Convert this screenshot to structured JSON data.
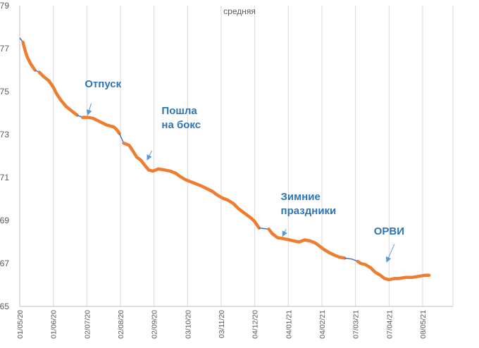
{
  "chart_data": {
    "type": "line",
    "title": "средняя",
    "xlabel": "",
    "ylabel": "",
    "ylim": [
      65,
      79
    ],
    "yticks": [
      65,
      67,
      69,
      71,
      73,
      75,
      77,
      79
    ],
    "grid": "vertical",
    "x_range": [
      0,
      400
    ],
    "xtick_labels": [
      {
        "label": "01/05/20",
        "day": 0
      },
      {
        "label": "01/06/20",
        "day": 31
      },
      {
        "label": "02/07/20",
        "day": 62
      },
      {
        "label": "02/08/20",
        "day": 93
      },
      {
        "label": "02/09/20",
        "day": 124
      },
      {
        "label": "03/10/20",
        "day": 155
      },
      {
        "label": "03/11/20",
        "day": 186
      },
      {
        "label": "04/12/20",
        "day": 217
      },
      {
        "label": "04/01/21",
        "day": 248
      },
      {
        "label": "04/02/21",
        "day": 279
      },
      {
        "label": "07/03/21",
        "day": 310
      },
      {
        "label": "07/04/21",
        "day": 341
      },
      {
        "label": "08/05/21",
        "day": 372
      }
    ],
    "series": [
      {
        "name": "средняя",
        "color": "#ed7d31",
        "gap_color": "#4472c4",
        "points": [
          [
            0,
            77.5
          ],
          [
            3,
            77.3
          ],
          [
            5,
            76.9
          ],
          [
            7,
            76.6
          ],
          [
            10,
            76.3
          ],
          [
            14,
            76.0
          ],
          [
            18,
            75.9
          ],
          [
            22,
            75.7
          ],
          [
            27,
            75.5
          ],
          [
            31,
            75.2
          ],
          [
            34,
            74.9
          ],
          [
            38,
            74.6
          ],
          [
            43,
            74.3
          ],
          [
            48,
            74.1
          ],
          [
            53,
            73.9
          ],
          [
            58,
            73.8
          ],
          [
            63,
            73.8
          ],
          [
            68,
            73.75
          ],
          [
            74,
            73.6
          ],
          [
            80,
            73.45
          ],
          [
            87,
            73.35
          ],
          [
            90,
            73.2
          ],
          [
            92,
            73.05
          ],
          [
            96,
            72.6
          ],
          [
            101,
            72.5
          ],
          [
            105,
            72.2
          ],
          [
            108,
            71.95
          ],
          [
            112,
            71.8
          ],
          [
            115,
            71.6
          ],
          [
            119,
            71.35
          ],
          [
            123,
            71.3
          ],
          [
            128,
            71.4
          ],
          [
            134,
            71.35
          ],
          [
            139,
            71.3
          ],
          [
            144,
            71.2
          ],
          [
            148,
            71.05
          ],
          [
            153,
            70.9
          ],
          [
            158,
            70.8
          ],
          [
            163,
            70.7
          ],
          [
            168,
            70.6
          ],
          [
            174,
            70.45
          ],
          [
            178,
            70.35
          ],
          [
            182,
            70.2
          ],
          [
            187,
            70.05
          ],
          [
            192,
            69.95
          ],
          [
            197,
            69.8
          ],
          [
            202,
            69.55
          ],
          [
            206,
            69.4
          ],
          [
            210,
            69.25
          ],
          [
            214,
            69.1
          ],
          [
            217,
            68.95
          ],
          [
            219,
            68.8
          ],
          [
            221,
            68.65
          ],
          [
            230,
            68.6
          ],
          [
            233,
            68.4
          ],
          [
            238,
            68.2
          ],
          [
            244,
            68.15
          ],
          [
            249,
            68.1
          ],
          [
            253,
            68.05
          ],
          [
            258,
            68.0
          ],
          [
            263,
            68.1
          ],
          [
            268,
            68.05
          ],
          [
            273,
            67.95
          ],
          [
            277,
            67.8
          ],
          [
            281,
            67.65
          ],
          [
            286,
            67.5
          ],
          [
            290,
            67.4
          ],
          [
            295,
            67.3
          ],
          [
            300,
            67.25
          ],
          [
            307,
            67.2
          ],
          [
            312,
            67.1
          ],
          [
            315,
            67.0
          ],
          [
            319,
            66.95
          ],
          [
            324,
            66.8
          ],
          [
            328,
            66.6
          ],
          [
            333,
            66.45
          ],
          [
            337,
            66.3
          ],
          [
            341,
            66.25
          ],
          [
            346,
            66.3
          ],
          [
            350,
            66.3
          ],
          [
            356,
            66.35
          ],
          [
            362,
            66.35
          ],
          [
            368,
            66.4
          ],
          [
            374,
            66.45
          ],
          [
            378,
            66.45
          ]
        ],
        "connector_gaps": [
          [
            0,
            1
          ],
          [
            5,
            6
          ],
          [
            14,
            15
          ],
          [
            22,
            23
          ],
          [
            52,
            53
          ],
          [
            68,
            69
          ],
          [
            69,
            70
          ]
        ]
      }
    ],
    "annotations": [
      {
        "lines": [
          "Отпуск"
        ],
        "text_day": 60,
        "text_value": 75.2,
        "arrow_from": [
          66,
          74.45
        ],
        "arrow_to": [
          63,
          73.95
        ]
      },
      {
        "lines": [
          "Пошла",
          "на бокс"
        ],
        "text_day": 131,
        "text_value": 73.95,
        "arrow_from": [
          122,
          72.25
        ],
        "arrow_to": [
          118,
          71.85
        ]
      },
      {
        "lines": [
          "Зимние",
          "праздники"
        ],
        "text_day": 241,
        "text_value": 69.95,
        "arrow_from": [
          246,
          68.6
        ],
        "arrow_to": [
          243,
          68.3
        ]
      },
      {
        "lines": [
          "ОРВИ"
        ],
        "text_day": 327,
        "text_value": 68.35,
        "arrow_from": [
          346,
          67.9
        ],
        "arrow_to": [
          339,
          67.1
        ]
      }
    ]
  }
}
